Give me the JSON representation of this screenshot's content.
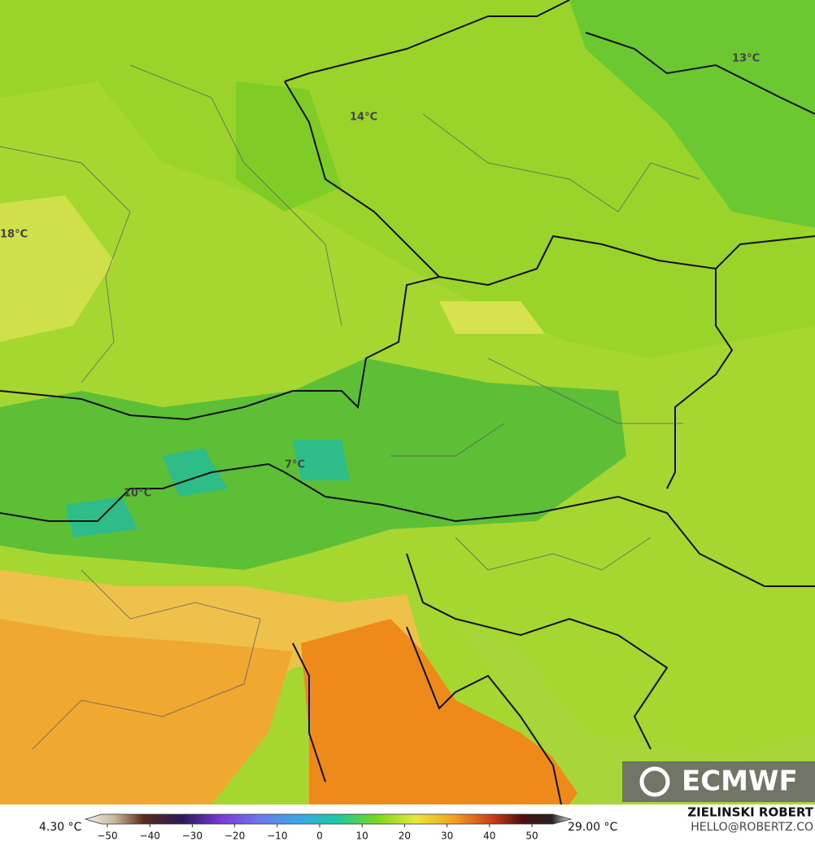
{
  "map": {
    "contour_labels": [
      "13°C",
      "14°C",
      "18°C",
      "7°C",
      "10°C"
    ],
    "colorbar": {
      "min_label": "4.30 °C",
      "max_label": "29.00 °C",
      "ticks": [
        {
          "value": -50,
          "label": "−50"
        },
        {
          "value": -40,
          "label": "−40"
        },
        {
          "value": -30,
          "label": "−30"
        },
        {
          "value": -20,
          "label": "−20"
        },
        {
          "value": -10,
          "label": "−10"
        },
        0,
        10,
        20,
        30,
        40,
        50
      ]
    }
  },
  "credits": {
    "author": "ZIELINSKI ROBERT",
    "contact": "HELLO@ROBERTZ.CO"
  },
  "logo": "ECMWF"
}
